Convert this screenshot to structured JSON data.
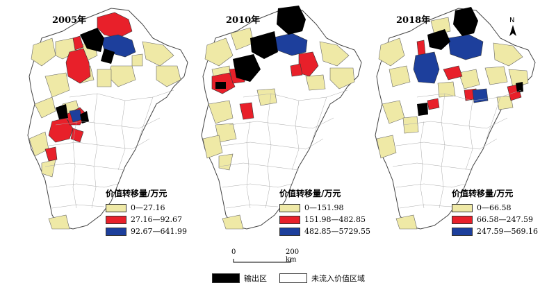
{
  "panels": [
    {
      "year": "2005年",
      "legend_title": "价值转移量/万元",
      "classes": [
        {
          "label": "0—27.16",
          "color": "#efe9a6"
        },
        {
          "label": "27.16—92.67",
          "color": "#e8202a"
        },
        {
          "label": "92.67—641.99",
          "color": "#1d3f9c"
        }
      ]
    },
    {
      "year": "2010年",
      "legend_title": "价值转移量/万元",
      "classes": [
        {
          "label": "0—151.98",
          "color": "#efe9a6"
        },
        {
          "label": "151.98—482.85",
          "color": "#e8202a"
        },
        {
          "label": "482.85—5729.55",
          "color": "#1d3f9c"
        }
      ]
    },
    {
      "year": "2018年",
      "legend_title": "价值转移量/万元",
      "classes": [
        {
          "label": "0—66.58",
          "color": "#efe9a6"
        },
        {
          "label": "66.58—247.59",
          "color": "#e8202a"
        },
        {
          "label": "247.59—569.16",
          "color": "#1d3f9c"
        }
      ]
    }
  ],
  "north_label": "N",
  "scale": {
    "start": "0",
    "end": "200 km"
  },
  "bottom_legend": [
    {
      "label": "输出区",
      "color": "#000000"
    },
    {
      "label": "未流入价值区域",
      "color": "#ffffff"
    }
  ],
  "colors": {
    "outline": "#555555",
    "inner": "#999999"
  }
}
